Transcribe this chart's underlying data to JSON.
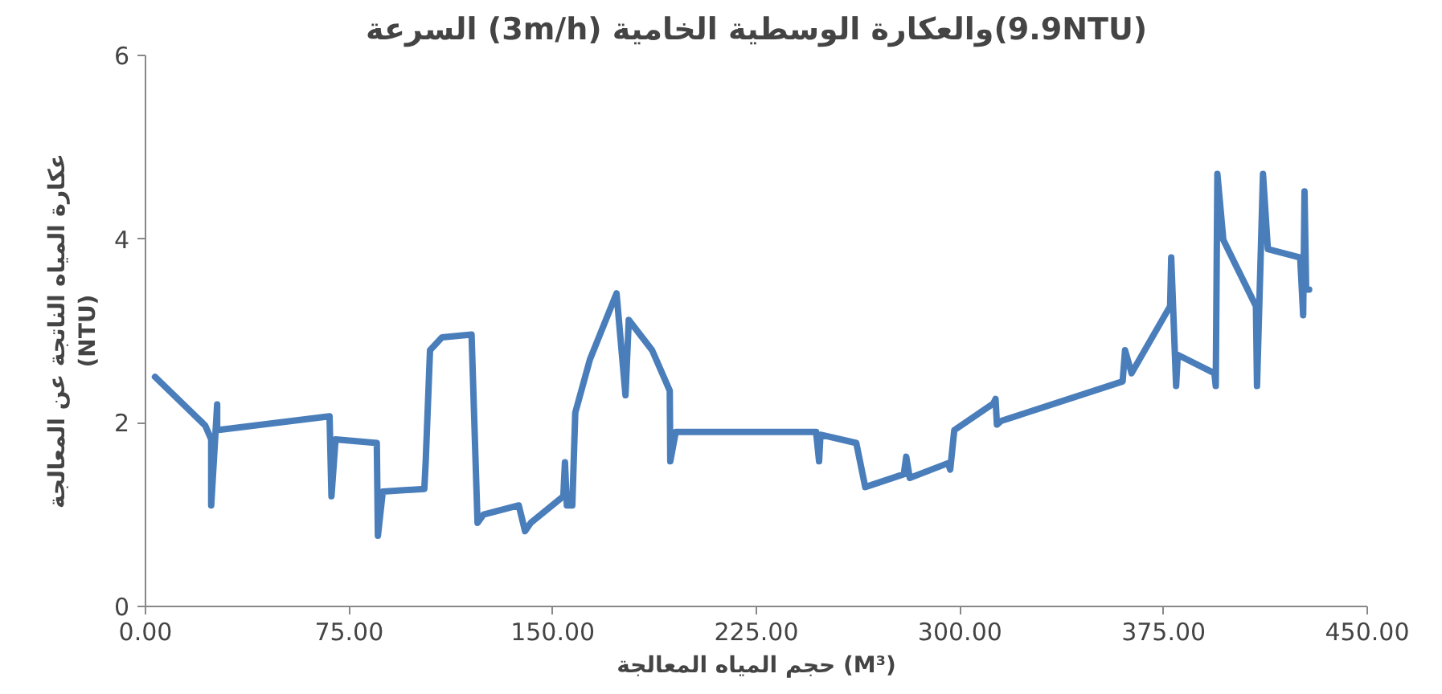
{
  "chart_data": {
    "type": "line",
    "title": "السرعة (3m/h) والعكارة الوسطية الخامية(9.9NTU)",
    "xlabel": "حجم المياه المعالجة (M³)",
    "ylabel": "عكارة المياه الناتجة عن المعالجة\n(NTU)",
    "x": [
      3.5,
      22,
      24.2,
      24.2,
      26.4,
      26.4,
      67.8,
      68.5,
      70,
      85.2,
      85.6,
      87.4,
      102.7,
      103.2,
      104.8,
      109.2,
      120.1,
      122.3,
      124.5,
      137.5,
      139.8,
      141.9,
      153.9,
      154.5,
      155.2,
      157.2,
      158.3,
      163.7,
      173.5,
      176.8,
      178,
      186.6,
      193.1,
      193.3,
      195.3,
      247,
      248.1,
      248.6,
      261.8,
      265.1,
      279.3,
      280.2,
      281.5,
      295.6,
      296.4,
      297.9,
      312.3,
      313.1,
      313.6,
      315.2,
      359.9,
      360.8,
      363.2,
      377.4,
      377.8,
      379.6,
      380.2,
      393.7,
      394.2,
      394.8,
      397,
      409,
      409.4,
      411.6,
      413.4,
      425.3,
      426.4,
      426.9,
      427.5,
      428.6
    ],
    "series": [
      {
        "color": "#4a7ebb",
        "values": [
          2.5,
          1.97,
          1.82,
          1.1,
          2.2,
          1.92,
          2.07,
          1.2,
          1.82,
          1.78,
          0.77,
          1.25,
          1.28,
          1.57,
          2.79,
          2.93,
          2.96,
          0.91,
          1.0,
          1.1,
          0.82,
          0.91,
          1.2,
          1.57,
          1.1,
          1.1,
          2.11,
          2.69,
          3.41,
          2.3,
          3.12,
          2.79,
          2.35,
          1.58,
          1.9,
          1.9,
          1.58,
          1.87,
          1.78,
          1.3,
          1.44,
          1.63,
          1.4,
          1.56,
          1.49,
          1.92,
          2.21,
          2.26,
          1.98,
          2.02,
          2.45,
          2.79,
          2.54,
          3.27,
          3.8,
          2.4,
          2.74,
          2.54,
          2.4,
          4.71,
          3.99,
          3.27,
          2.4,
          4.71,
          3.89,
          3.8,
          3.17,
          4.52,
          3.45,
          3.45
        ]
      }
    ],
    "xlim": [
      0,
      450
    ],
    "ylim": [
      0,
      6
    ],
    "xticks": [
      {
        "value": 0,
        "label": "0.00"
      },
      {
        "value": 75,
        "label": "75.00"
      },
      {
        "value": 150,
        "label": "150.00"
      },
      {
        "value": 225,
        "label": "225.00"
      },
      {
        "value": 300,
        "label": "300.00"
      },
      {
        "value": 375,
        "label": "375.00"
      },
      {
        "value": 450,
        "label": "450.00"
      }
    ],
    "yticks": [
      0,
      2,
      4,
      6
    ],
    "grid": false,
    "marker": "none",
    "line_style": "solid"
  }
}
